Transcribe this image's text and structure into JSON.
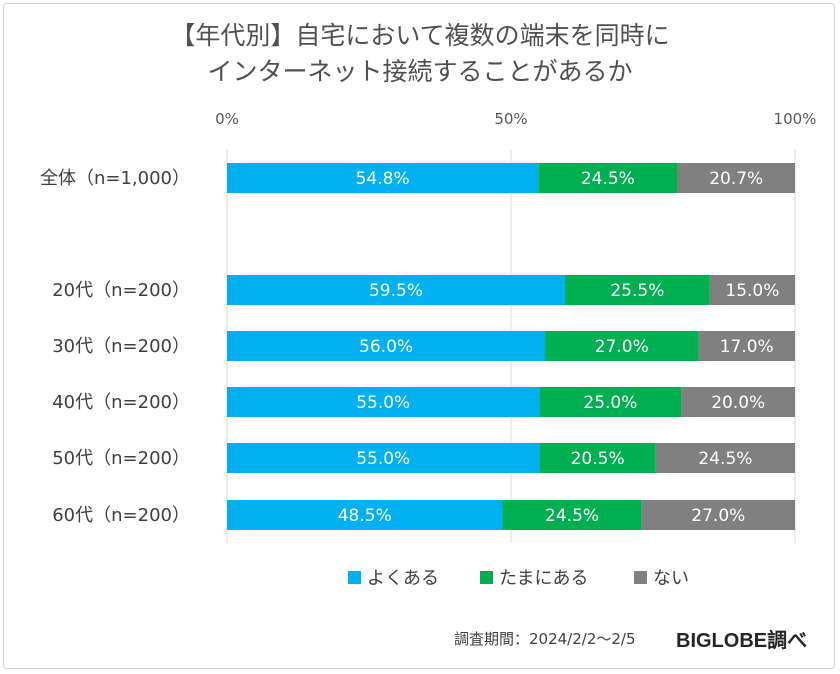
{
  "chart_data": {
    "type": "bar",
    "stacked": true,
    "orientation": "horizontal",
    "title_lines": [
      "【年代別】自宅において複数の端末を同時に",
      "インターネット接続することがあるか"
    ],
    "x_ticks": [
      "0%",
      "50%",
      "100%"
    ],
    "xlim": [
      0,
      100
    ],
    "grid": true,
    "legend_position": "bottom",
    "categories": [
      "全体（n=1,000）",
      "20代（n=200）",
      "30代（n=200）",
      "40代（n=200）",
      "50代（n=200）",
      "60代（n=200）"
    ],
    "series": [
      {
        "name": "よくある",
        "color": "#00b0f0",
        "values": [
          54.8,
          59.5,
          56.0,
          55.0,
          55.0,
          48.5
        ],
        "labels": [
          "54.8%",
          "59.5%",
          "56.0%",
          "55.0%",
          "55.0%",
          "48.5%"
        ]
      },
      {
        "name": "たまにある",
        "color": "#00b050",
        "values": [
          24.5,
          25.5,
          27.0,
          25.0,
          20.5,
          24.5
        ],
        "labels": [
          "24.5%",
          "25.5%",
          "27.0%",
          "25.0%",
          "20.5%",
          "24.5%"
        ]
      },
      {
        "name": "ない",
        "color": "#808080",
        "values": [
          20.7,
          15.0,
          17.0,
          20.0,
          24.5,
          27.0
        ],
        "labels": [
          "20.7%",
          "15.0%",
          "17.0%",
          "20.0%",
          "24.5%",
          "27.0%"
        ]
      }
    ]
  },
  "footer": {
    "period": "調査期間：2024/2/2～2/5",
    "brand": "BIGLOBE調べ"
  }
}
